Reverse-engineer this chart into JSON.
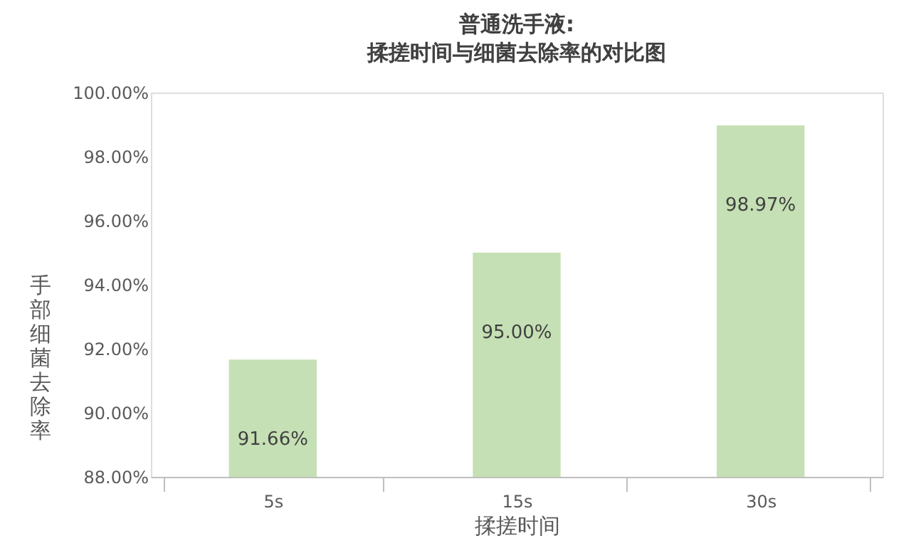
{
  "chart_data": {
    "type": "bar",
    "title": "普通洗手液:\n揉搓时间与细菌去除率的对比图",
    "xlabel": "揉搓时间",
    "ylabel": "手部细菌去除率",
    "categories": [
      "5s",
      "15s",
      "30s"
    ],
    "values": [
      91.66,
      95.0,
      98.97
    ],
    "value_labels": [
      "91.66%",
      "95.00%",
      "98.97%"
    ],
    "color": "#c5e0b4",
    "ylim": [
      88,
      100
    ],
    "yticks": [
      {
        "value": 88,
        "label": "88.00%"
      },
      {
        "value": 90,
        "label": "90.00%"
      },
      {
        "value": 92,
        "label": "92.00%"
      },
      {
        "value": 94,
        "label": "94.00%"
      },
      {
        "value": 96,
        "label": "96.00%"
      },
      {
        "value": 98,
        "label": "98.00%"
      },
      {
        "value": 100,
        "label": "100.00%"
      }
    ],
    "grid": false
  }
}
